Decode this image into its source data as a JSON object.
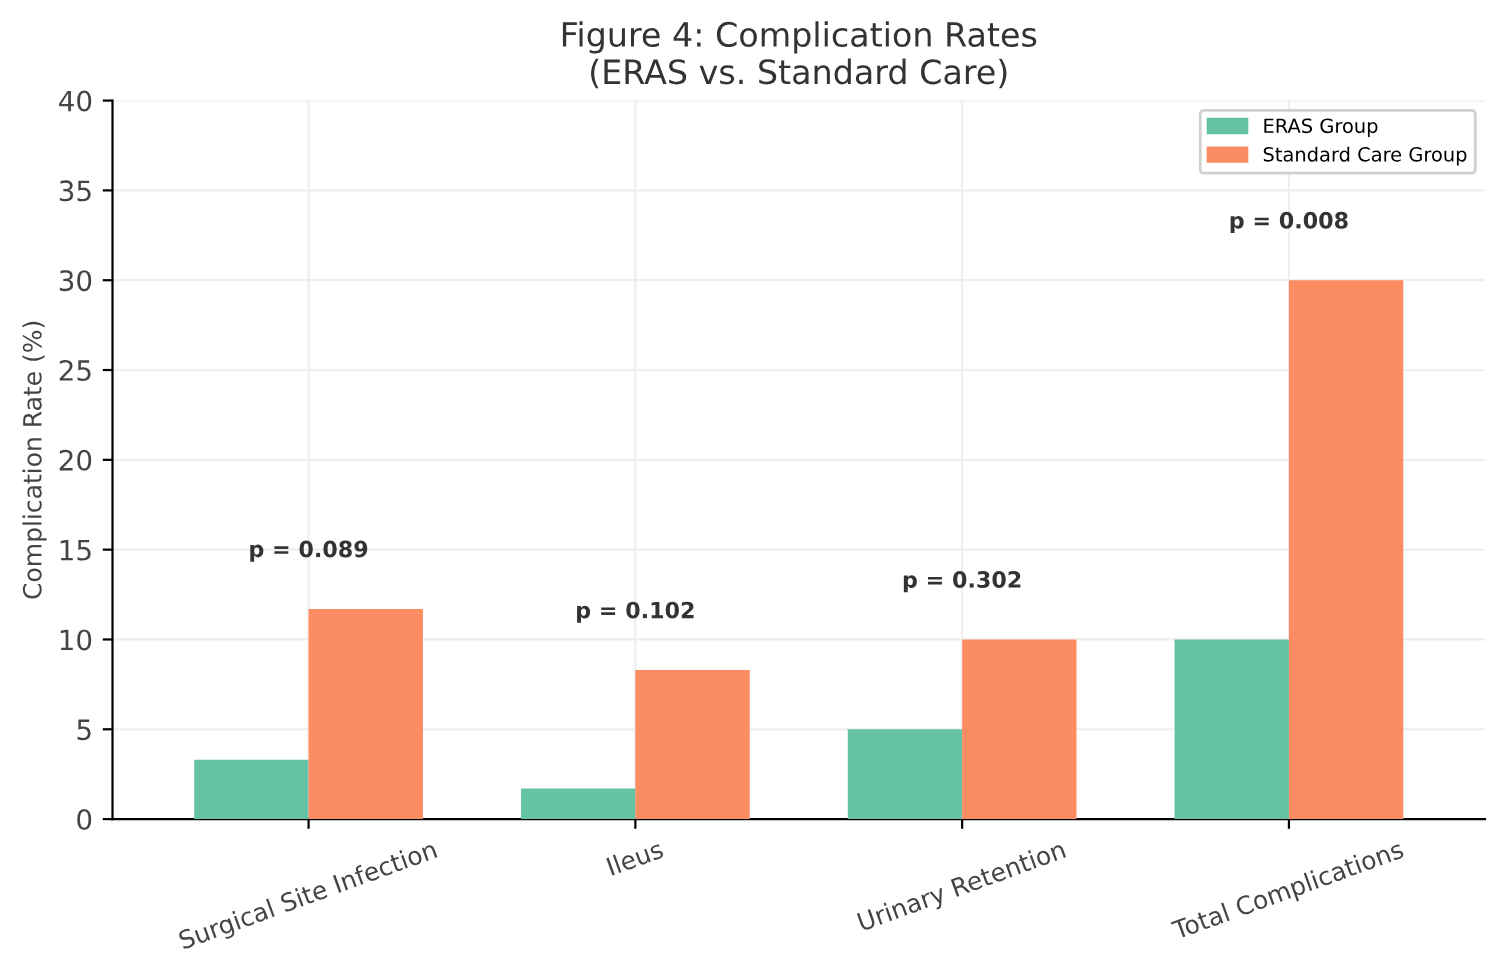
{
  "chart_data": {
    "type": "bar",
    "title": "Figure 4: Complication Rates\n(ERAS vs. Standard Care)",
    "ylabel": "Complication Rate (%)",
    "categories": [
      "Surgical Site Infection",
      "Ileus",
      "Urinary Retention",
      "Total Complications"
    ],
    "series": [
      {
        "name": "ERAS Group",
        "color": "#66c2a5",
        "values": [
          3.3,
          1.7,
          5.0,
          10.0
        ]
      },
      {
        "name": "Standard Care Group",
        "color": "#fc8d62",
        "values": [
          11.7,
          8.3,
          10.0,
          30.0
        ]
      }
    ],
    "annotations": [
      "p = 0.089",
      "p = 0.102",
      "p = 0.302",
      "p = 0.008"
    ],
    "ylim": [
      0,
      40
    ],
    "yticks": [
      0,
      5,
      10,
      15,
      20,
      25,
      30,
      35,
      40
    ],
    "grid": true,
    "legend": "top right"
  }
}
